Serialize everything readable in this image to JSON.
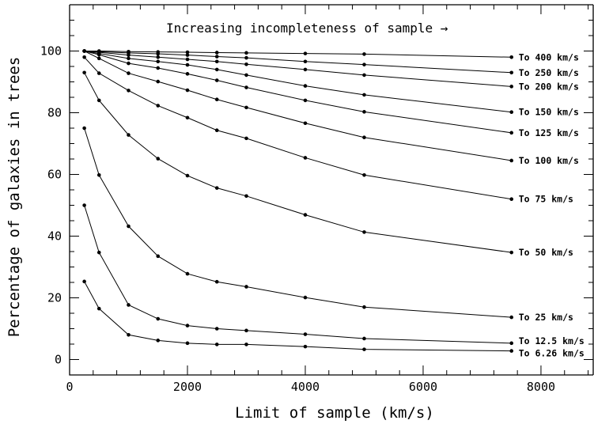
{
  "chart_data": {
    "type": "line",
    "xlabel": "Limit of sample (km/s)",
    "ylabel": "Percentage of galaxies in trees",
    "annotation": "Increasing incompleteness of sample →",
    "xlim": [
      0,
      8900
    ],
    "ylim": [
      -5,
      115
    ],
    "x_ticks": [
      0,
      2000,
      4000,
      6000,
      8000
    ],
    "y_ticks": [
      0,
      20,
      40,
      60,
      80,
      100
    ],
    "grid": false,
    "x": [
      250,
      500,
      1000,
      1500,
      2000,
      2500,
      3000,
      4000,
      5000,
      7500
    ],
    "series": [
      {
        "name": "To 400 km/s",
        "values": [
          100,
          100,
          99.8,
          99.7,
          99.6,
          99.5,
          99.4,
          99.2,
          99.0,
          98.0
        ]
      },
      {
        "name": "To 250 km/s",
        "values": [
          100,
          99.8,
          99.4,
          99.1,
          98.7,
          98.2,
          97.8,
          96.6,
          95.6,
          93.0
        ]
      },
      {
        "name": "To 200 km/s",
        "values": [
          100,
          99.6,
          98.7,
          98.0,
          97.3,
          96.6,
          95.7,
          94.0,
          92.2,
          88.5
        ]
      },
      {
        "name": "To 150 km/s",
        "values": [
          100,
          99.2,
          97.6,
          96.6,
          95.5,
          94.0,
          92.2,
          88.7,
          85.8,
          80.2
        ]
      },
      {
        "name": "To 125 km/s",
        "values": [
          100,
          98.8,
          96.0,
          94.5,
          92.6,
          90.5,
          88.2,
          84.0,
          80.3,
          73.5
        ]
      },
      {
        "name": "To 100 km/s",
        "values": [
          100,
          97.6,
          92.8,
          90.1,
          87.3,
          84.3,
          81.7,
          76.6,
          72.0,
          64.5
        ]
      },
      {
        "name": "To 75 km/s",
        "values": [
          98,
          92.8,
          87.2,
          82.3,
          78.4,
          74.3,
          71.7,
          65.4,
          59.8,
          52.0
        ]
      },
      {
        "name": "To 50 km/s",
        "values": [
          93,
          84.0,
          72.8,
          65.1,
          59.6,
          55.6,
          53.0,
          46.9,
          41.3,
          34.7
        ]
      },
      {
        "name": "To 25 km/s",
        "values": [
          75,
          59.8,
          43.2,
          33.5,
          27.8,
          25.2,
          23.6,
          20.1,
          17.0,
          13.7
        ]
      },
      {
        "name": "To 12.5 km/s",
        "values": [
          50,
          34.7,
          17.7,
          13.2,
          11.0,
          10.0,
          9.4,
          8.2,
          6.8,
          5.3
        ]
      },
      {
        "name": "To 6.26 km/s",
        "values": [
          25.3,
          16.5,
          8.0,
          6.2,
          5.3,
          4.9,
          4.9,
          4.2,
          3.3,
          2.8
        ]
      }
    ]
  }
}
